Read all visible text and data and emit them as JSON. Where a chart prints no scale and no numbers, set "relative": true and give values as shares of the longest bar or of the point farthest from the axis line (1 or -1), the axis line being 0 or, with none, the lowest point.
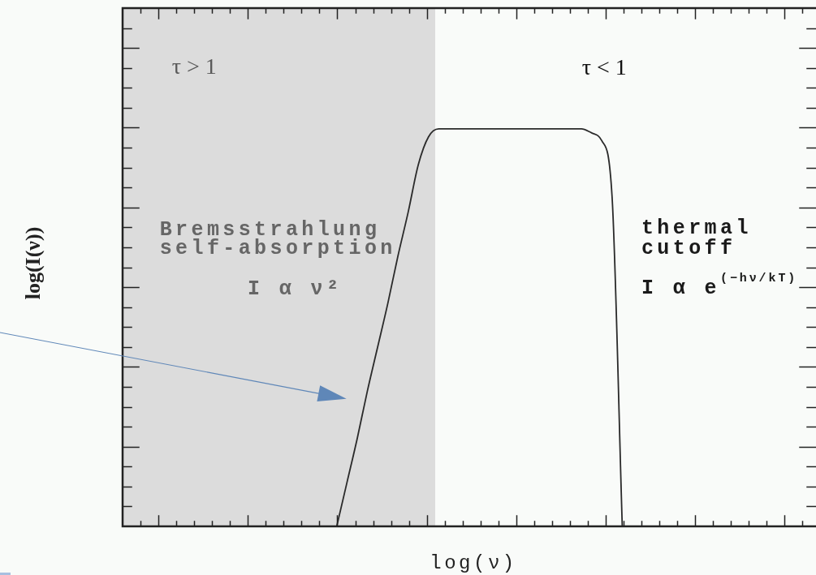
{
  "chart_data": {
    "type": "line",
    "xlabel": "log(ν)",
    "ylabel": "log(I(ν))",
    "relative": true,
    "categories": [
      null,
      null,
      null,
      null,
      null,
      null,
      null,
      null,
      null,
      null,
      null,
      null,
      null,
      null,
      null,
      null,
      null,
      null,
      null,
      null,
      null,
      null,
      null,
      null,
      null,
      null,
      null,
      null,
      null,
      null,
      null,
      null,
      null,
      null,
      null,
      null,
      null,
      null,
      null,
      null,
      null,
      null,
      null,
      null,
      null,
      null,
      null,
      null,
      null,
      null,
      null,
      null,
      null,
      null,
      null,
      null,
      null,
      null,
      null,
      null,
      null,
      null,
      null,
      null,
      null,
      null,
      null,
      null,
      null
    ],
    "values": [
      null,
      null,
      null,
      null,
      null,
      null,
      null,
      null,
      null,
      null,
      null,
      null,
      null,
      null,
      null,
      null,
      null,
      null,
      null,
      null,
      null,
      0,
      0.11,
      0.22,
      0.34,
      0.45,
      0.56,
      0.68,
      0.79,
      0.91,
      0.98,
      1,
      1,
      1,
      1,
      1,
      1,
      1,
      1,
      1,
      1,
      1,
      1,
      1,
      1,
      1,
      0.99,
      0.97,
      0.83,
      0,
      null,
      null,
      null,
      null,
      null,
      null,
      null,
      null,
      null,
      null,
      null,
      null,
      null,
      null,
      null,
      null,
      null,
      null,
      null
    ],
    "color": "#2a2a2a",
    "annotations": [
      "τ > 1",
      "τ < 1",
      "Bremsstrahlung\nself-absorption",
      "I α ν²",
      "thermal\ncutoff",
      "I α e$^{(−hν/kT)}$"
    ]
  }
}
